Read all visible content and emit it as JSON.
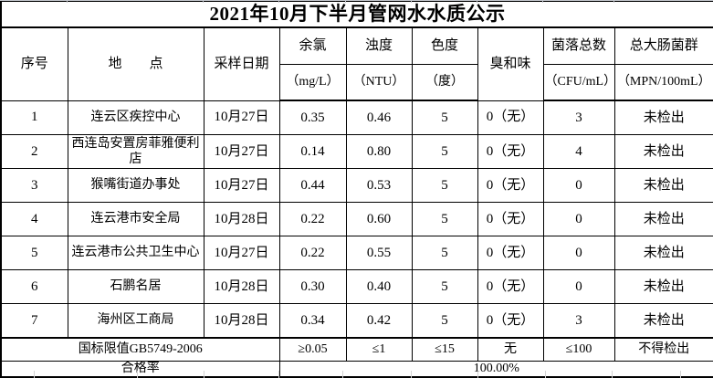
{
  "title": "2021年10月下半月管网水水质公示",
  "table": {
    "columns": [
      {
        "label": "序号"
      },
      {
        "label": "地　　点"
      },
      {
        "label": "采样日期"
      },
      {
        "label": "余氯",
        "unit": "（mg/L）"
      },
      {
        "label": "浊度",
        "unit": "（NTU）"
      },
      {
        "label": "色度",
        "unit": "（度）"
      },
      {
        "label": "臭和味"
      },
      {
        "label": "菌落总数",
        "unit": "（CFU/mL）"
      },
      {
        "label": "总大肠菌群",
        "unit": "（MPN/100mL）"
      }
    ],
    "rows": [
      [
        "1",
        "连云区疾控中心",
        "10月27日",
        "0.35",
        "0.46",
        "5",
        "0（无）",
        "3",
        "未检出"
      ],
      [
        "2",
        "西连岛安置房菲雅便利店",
        "10月27日",
        "0.14",
        "0.80",
        "5",
        "0（无）",
        "4",
        "未检出"
      ],
      [
        "3",
        "猴嘴街道办事处",
        "10月27日",
        "0.44",
        "0.53",
        "5",
        "0（无）",
        "0",
        "未检出"
      ],
      [
        "4",
        "连云港市安全局",
        "10月28日",
        "0.22",
        "0.60",
        "5",
        "0（无）",
        "0",
        "未检出"
      ],
      [
        "5",
        "连云港市公共卫生中心",
        "10月27日",
        "0.22",
        "0.55",
        "5",
        "0（无）",
        "0",
        "未检出"
      ],
      [
        "6",
        "石鹏名居",
        "10月28日",
        "0.30",
        "0.40",
        "5",
        "0（无）",
        "0",
        "未检出"
      ],
      [
        "7",
        "海州区工商局",
        "10月28日",
        "0.34",
        "0.42",
        "5",
        "0（无）",
        "3",
        "未检出"
      ]
    ],
    "limit_row": {
      "label": "国标限值GB5749-2006",
      "values": [
        "≥0.05",
        "≤1",
        "≤15",
        "无",
        "≤100",
        "不得检出"
      ]
    },
    "rate_row": {
      "label": "合格率",
      "value": "100.00%"
    }
  },
  "colors": {
    "text": "#000000",
    "border": "#000000",
    "background": "#ffffff",
    "sheet_gridline": "#c4c7ce"
  }
}
